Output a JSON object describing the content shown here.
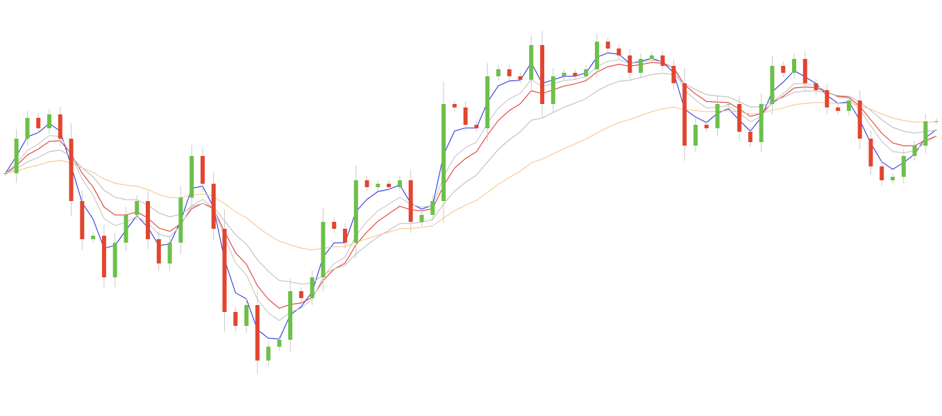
{
  "chart_data": {
    "type": "candlestick",
    "title": "",
    "xlabel": "",
    "ylabel": "",
    "ylim": [
      0,
      60
    ],
    "grid": false,
    "first_open": 35,
    "closes": [
      35,
      40,
      43,
      41.5,
      43.5,
      40,
      31,
      25.5,
      26,
      20,
      25,
      29,
      31,
      25.5,
      22,
      25,
      31.5,
      37.5,
      33.5,
      27,
      15,
      13,
      16,
      8,
      10,
      11,
      18,
      17,
      20,
      28,
      27,
      25,
      34,
      33,
      33.5,
      33,
      34,
      28,
      29,
      31,
      45,
      44.5,
      42,
      41.5,
      49,
      50,
      49,
      48.5,
      53.5,
      45,
      49,
      49.5,
      49,
      50,
      54,
      53,
      52,
      49.5,
      51.5,
      52,
      50.5,
      48,
      39,
      42,
      41.5,
      45,
      45,
      41,
      39.5,
      45,
      50.5,
      49.5,
      51.5,
      48,
      47,
      44.5,
      44,
      45.5,
      40,
      36,
      34,
      34.5,
      37.5,
      39,
      42.5,
      42.5
    ],
    "colors": {
      "up": "#6cc04a",
      "down": "#e2452f",
      "wick": "#c8c8c8"
    },
    "overlays": [
      {
        "type": "moving-average",
        "period": 3,
        "color": "#2a35e0"
      },
      {
        "type": "moving-average",
        "period": 8,
        "color": "#e03a30"
      },
      {
        "type": "moving-average",
        "period": 6,
        "color": "#c4c4c4"
      },
      {
        "type": "moving-average",
        "period": 14,
        "color": "#bdbdbd"
      },
      {
        "type": "moving-average",
        "period": 30,
        "color": "#f5c68a"
      }
    ]
  }
}
